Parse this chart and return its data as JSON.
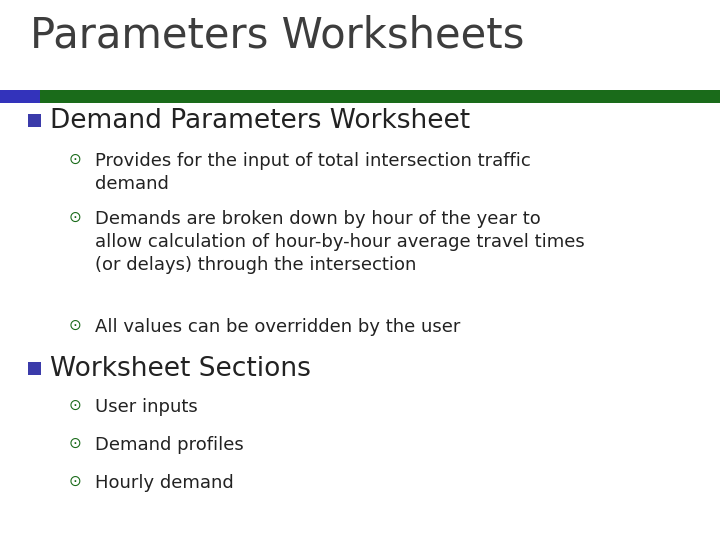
{
  "title": "Parameters Worksheets",
  "title_color": "#3d3d3d",
  "title_fontsize": 30,
  "bar_blue": "#3333bb",
  "bar_green": "#1a6b1a",
  "background_color": "#ffffff",
  "bullet1_header": "Demand Parameters Worksheet",
  "bullet1_header_fontsize": 19,
  "bullet1_color": "#3b3baa",
  "sub_bullet_color": "#1a6b1a",
  "sub_bullet_fontsize": 13,
  "sub_bullets_1": [
    "Provides for the input of total intersection traffic\ndemand",
    "Demands are broken down by hour of the year to\nallow calculation of hour-by-hour average travel times\n(or delays) through the intersection",
    "All values can be overridden by the user"
  ],
  "bullet2_header": "Worksheet Sections",
  "bullet2_header_fontsize": 19,
  "sub_bullets_2": [
    "User inputs",
    "Demand profiles",
    "Hourly demand"
  ]
}
